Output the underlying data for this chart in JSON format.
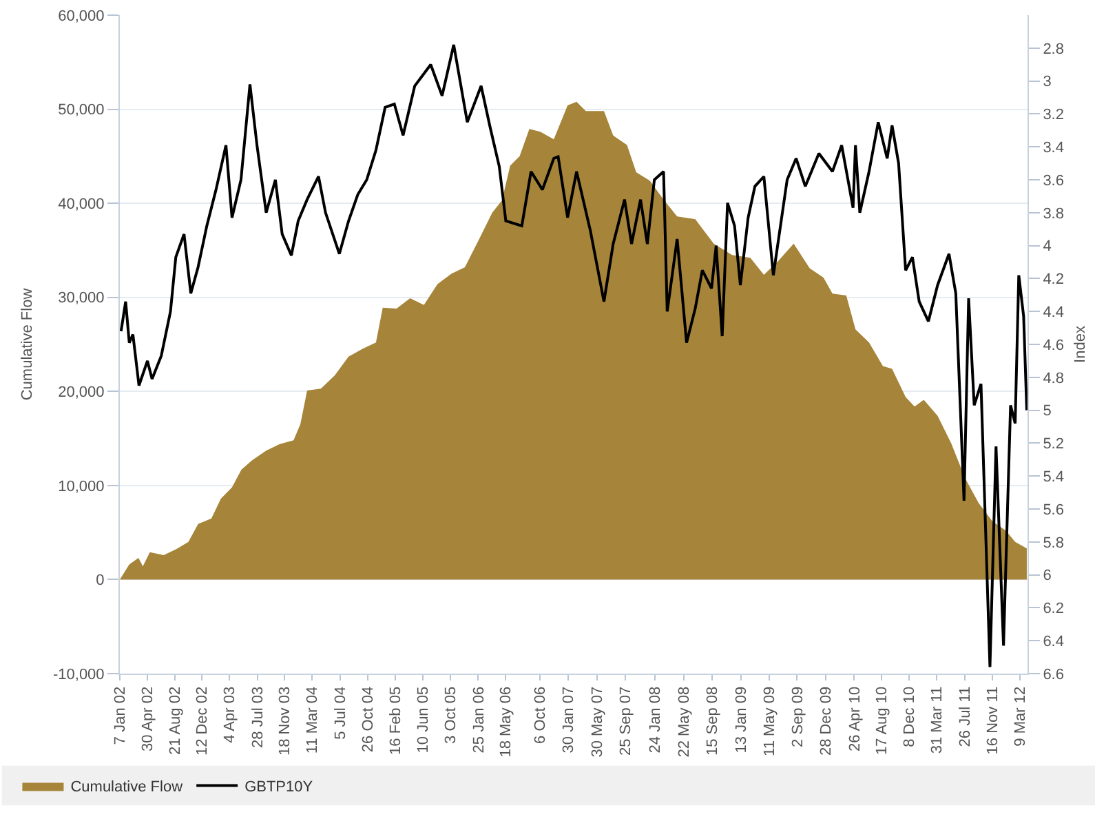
{
  "chart_data": {
    "type": "area",
    "ylabel": "Cumulative Flow",
    "y2label": "Index",
    "xlim": [
      "2002-01-07",
      "2012-04-10"
    ],
    "xticks": [
      {
        "value": "2002-01-07",
        "label": "7 Jan 02"
      },
      {
        "value": "2002-04-30",
        "label": "30 Apr 02"
      },
      {
        "value": "2002-08-21",
        "label": "21 Aug 02"
      },
      {
        "value": "2002-12-12",
        "label": "12 Dec 02"
      },
      {
        "value": "2003-04-04",
        "label": "4 Apr 03"
      },
      {
        "value": "2003-07-28",
        "label": "28 Jul 03"
      },
      {
        "value": "2003-11-18",
        "label": "18 Nov 03"
      },
      {
        "value": "2004-03-11",
        "label": "11 Mar 04"
      },
      {
        "value": "2004-07-05",
        "label": "5 Jul 04"
      },
      {
        "value": "2004-10-26",
        "label": "26 Oct 04"
      },
      {
        "value": "2005-02-16",
        "label": "16 Feb 05"
      },
      {
        "value": "2005-06-10",
        "label": "10 Jun 05"
      },
      {
        "value": "2005-10-03",
        "label": "3 Oct 05"
      },
      {
        "value": "2006-01-25",
        "label": "25 Jan 06"
      },
      {
        "value": "2006-05-18",
        "label": "18 May 06"
      },
      {
        "value": "2006-10-06",
        "label": "6 Oct 06"
      },
      {
        "value": "2007-01-30",
        "label": "30 Jan 07"
      },
      {
        "value": "2007-05-30",
        "label": "30 May 07"
      },
      {
        "value": "2007-09-25",
        "label": "25 Sep 07"
      },
      {
        "value": "2008-01-24",
        "label": "24 Jan 08"
      },
      {
        "value": "2008-05-22",
        "label": "22 May 08"
      },
      {
        "value": "2008-09-15",
        "label": "15 Sep 08"
      },
      {
        "value": "2009-01-13",
        "label": "13 Jan 09"
      },
      {
        "value": "2009-05-11",
        "label": "11 May 09"
      },
      {
        "value": "2009-09-02",
        "label": "2 Sep 09"
      },
      {
        "value": "2009-12-28",
        "label": "28 Dec 09"
      },
      {
        "value": "2010-04-26",
        "label": "26 Apr 10"
      },
      {
        "value": "2010-08-17",
        "label": "17 Aug 10"
      },
      {
        "value": "2010-12-08",
        "label": "8 Dec 10"
      },
      {
        "value": "2011-03-31",
        "label": "31 Mar 11"
      },
      {
        "value": "2011-07-26",
        "label": "26 Jul 11"
      },
      {
        "value": "2011-11-16",
        "label": "16 Nov 11"
      },
      {
        "value": "2012-03-09",
        "label": "9 Mar 12"
      }
    ],
    "ylim": [
      -10000,
      60000
    ],
    "yticks": [
      {
        "value": -10000,
        "label": "-10,000"
      },
      0,
      {
        "value": 10000,
        "label": "10,000"
      },
      {
        "value": 20000,
        "label": "20,000"
      },
      {
        "value": 30000,
        "label": "30,000"
      },
      {
        "value": 40000,
        "label": "40,000"
      },
      {
        "value": 50000,
        "label": "50,000"
      },
      {
        "value": 60000,
        "label": "60,000"
      }
    ],
    "y2lim": [
      6.6,
      2.6
    ],
    "y2ticks": [
      2.8,
      3,
      3.2,
      3.4,
      3.6,
      3.8,
      4,
      4.2,
      4.4,
      4.6,
      4.8,
      5,
      5.2,
      5.4,
      5.6,
      5.8,
      6,
      6.2,
      6.4,
      6.6
    ],
    "grid": "y",
    "legend": "bottom",
    "series": [
      {
        "name": "Cumulative Flow",
        "color": "#a68439",
        "x": [
          "2002-01-07",
          "2002-02-15",
          "2002-03-25",
          "2002-04-12",
          "2002-05-11",
          "2002-07-07",
          "2002-09-02",
          "2002-10-17",
          "2002-11-26",
          "2003-01-20",
          "2003-02-28",
          "2003-04-15",
          "2003-05-24",
          "2003-07-08",
          "2003-09-03",
          "2003-10-29",
          "2003-12-25",
          "2004-01-22",
          "2004-02-19",
          "2004-04-16",
          "2004-06-12",
          "2004-08-08",
          "2004-10-03",
          "2004-11-29",
          "2004-12-27",
          "2005-02-22",
          "2005-04-19",
          "2005-06-15",
          "2005-08-10",
          "2005-10-06",
          "2005-12-01",
          "2006-01-27",
          "2006-03-24",
          "2006-05-03",
          "2006-06-06",
          "2006-07-15",
          "2006-08-24",
          "2006-10-08",
          "2006-12-03",
          "2007-01-29",
          "2007-03-07",
          "2007-04-14",
          "2007-06-28",
          "2007-08-05",
          "2007-10-01",
          "2007-11-08",
          "2008-01-03",
          "2008-02-29",
          "2008-04-25",
          "2008-07-09",
          "2008-09-23",
          "2008-12-08",
          "2009-02-21",
          "2009-04-18",
          "2009-06-14",
          "2009-08-19",
          "2009-10-24",
          "2009-12-20",
          "2010-01-26",
          "2010-03-24",
          "2010-05-01",
          "2010-06-26",
          "2010-08-22",
          "2010-09-29",
          "2010-11-24",
          "2010-12-31",
          "2011-02-07",
          "2011-04-05",
          "2011-05-31",
          "2011-07-27",
          "2011-09-22",
          "2011-11-17",
          "2012-01-12",
          "2012-02-19",
          "2012-04-07"
        ],
        "values": [
          0,
          1600,
          2300,
          1400,
          2900,
          2600,
          3300,
          4000,
          5900,
          6500,
          8600,
          9800,
          11700,
          12700,
          13700,
          14400,
          14800,
          16500,
          20100,
          20300,
          21700,
          23700,
          24500,
          25200,
          28900,
          28800,
          29900,
          29200,
          31400,
          32500,
          33200,
          36100,
          39000,
          40300,
          44000,
          45000,
          47900,
          47600,
          46800,
          50400,
          50800,
          49800,
          49800,
          47200,
          46200,
          43300,
          42400,
          40400,
          38600,
          38300,
          35700,
          34500,
          34200,
          32400,
          33800,
          35700,
          33100,
          32100,
          30400,
          30200,
          26600,
          25200,
          22700,
          22400,
          19400,
          18400,
          19100,
          17400,
          14500,
          10800,
          8100,
          6200,
          5200,
          4000,
          3300
        ]
      },
      {
        "name": "GBTP10Y",
        "type": "line",
        "axis": "y2",
        "color": "#000000",
        "x": [
          "2002-01-12",
          "2002-01-31",
          "2002-02-15",
          "2002-03-02",
          "2002-03-27",
          "2002-05-01",
          "2002-05-20",
          "2002-06-27",
          "2002-08-04",
          "2002-08-26",
          "2002-09-29",
          "2002-10-27",
          "2002-11-26",
          "2003-01-01",
          "2003-02-08",
          "2003-03-21",
          "2003-04-15",
          "2003-05-22",
          "2003-06-28",
          "2003-07-27",
          "2003-09-03",
          "2003-10-11",
          "2003-11-08",
          "2003-12-16",
          "2004-01-13",
          "2004-02-19",
          "2004-04-06",
          "2004-05-05",
          "2004-07-01",
          "2004-08-08",
          "2004-09-15",
          "2004-10-22",
          "2004-11-29",
          "2005-01-06",
          "2005-02-13",
          "2005-03-21",
          "2005-05-08",
          "2005-07-13",
          "2005-08-29",
          "2005-10-16",
          "2005-12-11",
          "2006-02-06",
          "2006-03-15",
          "2006-04-22",
          "2006-05-19",
          "2006-07-24",
          "2006-08-31",
          "2006-10-17",
          "2006-12-03",
          "2006-12-21",
          "2007-01-29",
          "2007-03-07",
          "2007-05-03",
          "2007-06-28",
          "2007-08-05",
          "2007-09-21",
          "2007-10-20",
          "2007-11-26",
          "2007-12-24",
          "2008-01-22",
          "2008-02-29",
          "2008-03-15",
          "2008-04-25",
          "2008-06-03",
          "2008-07-09",
          "2008-08-07",
          "2008-09-14",
          "2008-10-03",
          "2008-10-28",
          "2008-11-19",
          "2008-12-18",
          "2009-01-11",
          "2009-02-12",
          "2009-03-12",
          "2009-04-18",
          "2009-05-27",
          "2009-07-23",
          "2009-08-29",
          "2009-10-06",
          "2009-12-01",
          "2010-01-26",
          "2010-03-05",
          "2010-04-21",
          "2010-05-01",
          "2010-05-19",
          "2010-06-26",
          "2010-08-03",
          "2010-09-09",
          "2010-09-29",
          "2010-10-26",
          "2010-11-24",
          "2010-12-22",
          "2011-01-19",
          "2011-02-26",
          "2011-04-05",
          "2011-05-22",
          "2011-06-19",
          "2011-07-23",
          "2011-08-11",
          "2011-09-03",
          "2011-10-01",
          "2011-11-07",
          "2011-12-02",
          "2012-01-02",
          "2012-01-31",
          "2012-02-19",
          "2012-03-05",
          "2012-03-25",
          "2012-04-07"
        ],
        "values": [
          4.52,
          4.34,
          4.59,
          4.54,
          4.85,
          4.7,
          4.81,
          4.67,
          4.4,
          4.07,
          3.93,
          4.29,
          4.13,
          3.88,
          3.66,
          3.39,
          3.83,
          3.6,
          3.02,
          3.39,
          3.8,
          3.6,
          3.93,
          4.06,
          3.85,
          3.72,
          3.58,
          3.8,
          4.05,
          3.85,
          3.69,
          3.6,
          3.42,
          3.16,
          3.14,
          3.33,
          3.03,
          2.9,
          3.09,
          2.78,
          3.25,
          3.03,
          3.28,
          3.52,
          3.85,
          3.88,
          3.55,
          3.66,
          3.47,
          3.46,
          3.83,
          3.55,
          3.91,
          4.34,
          3.99,
          3.72,
          3.99,
          3.72,
          3.99,
          3.6,
          3.55,
          4.4,
          3.96,
          4.59,
          4.38,
          4.15,
          4.26,
          4.0,
          4.55,
          3.74,
          3.88,
          4.24,
          3.83,
          3.64,
          3.58,
          4.18,
          3.6,
          3.47,
          3.64,
          3.44,
          3.55,
          3.39,
          3.77,
          3.39,
          3.8,
          3.55,
          3.25,
          3.47,
          3.27,
          3.5,
          4.15,
          4.07,
          4.34,
          4.46,
          4.24,
          4.05,
          4.29,
          5.55,
          4.32,
          4.97,
          4.84,
          6.56,
          5.22,
          6.43,
          4.97,
          5.08,
          4.18,
          4.43,
          5.0
        ]
      }
    ]
  }
}
